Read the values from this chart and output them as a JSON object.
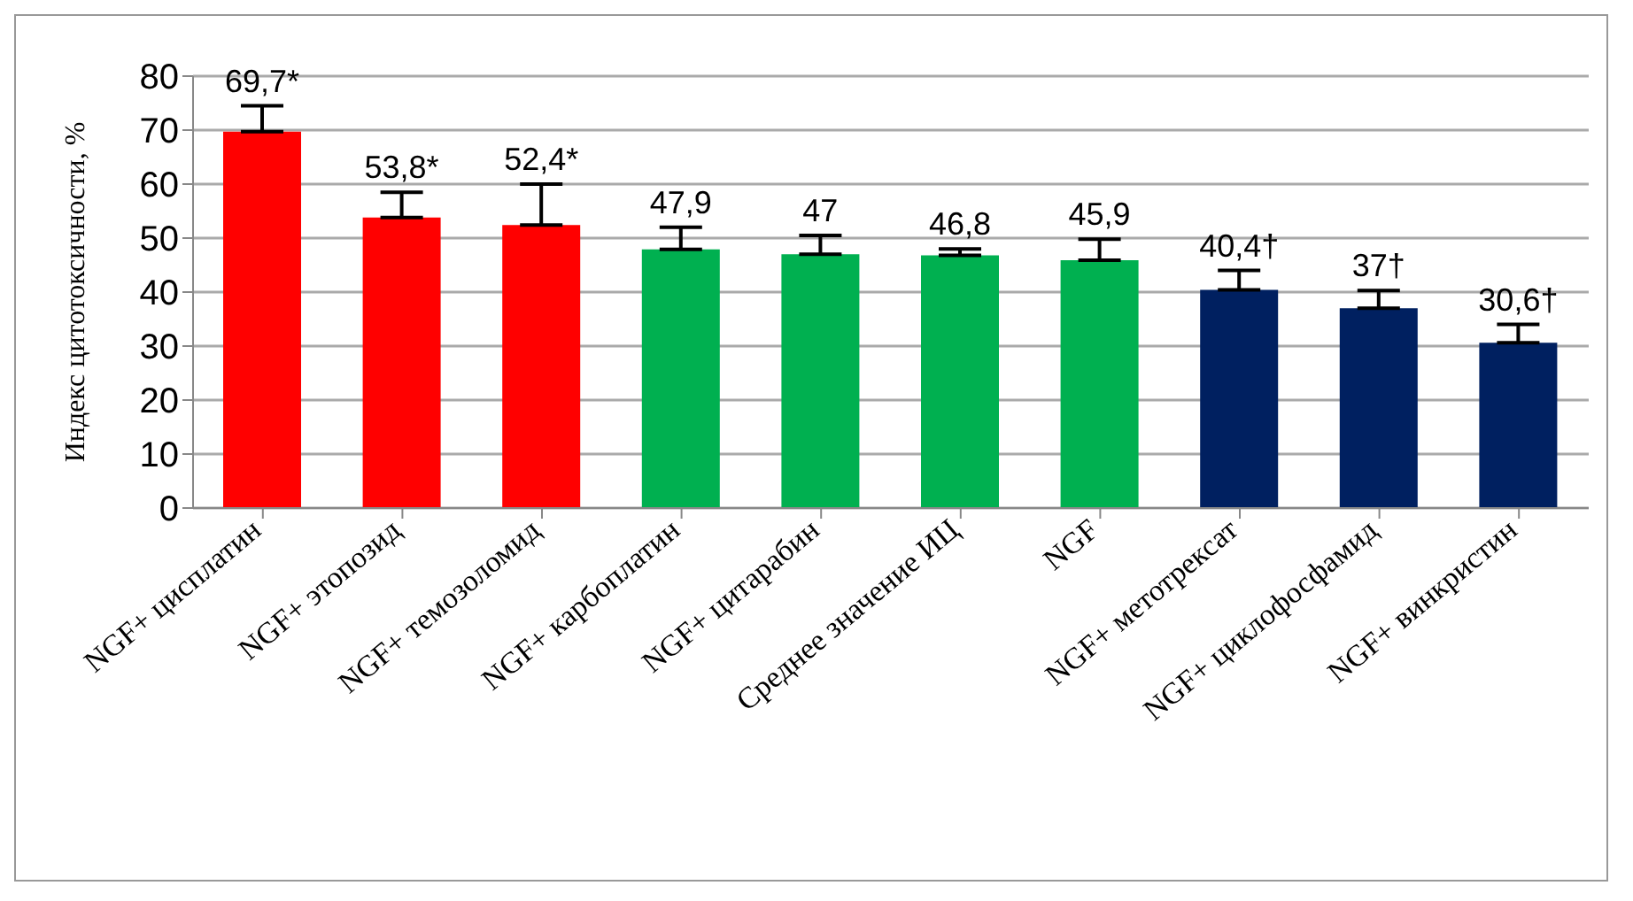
{
  "chart_data": {
    "type": "bar",
    "ylabel": "Индекс цитотоксичности, %",
    "categories": [
      "NGF+ цисплатин",
      "NGF+ этопозид",
      "NGF+ темозоломид",
      "NGF+ карбоплатин",
      "NGF+ цитарабин",
      "Среднее значение ИЦ",
      "NGF",
      "NGF+ метотрексат",
      "NGF+ циклофосфамид",
      "NGF+ винкристин"
    ],
    "values": [
      69.7,
      53.8,
      52.4,
      47.9,
      47,
      46.8,
      45.9,
      40.4,
      37,
      30.6
    ],
    "colors": [
      "#ff0000",
      "#ff0000",
      "#ff0000",
      "#00b050",
      "#00b050",
      "#00b050",
      "#00b050",
      "#002060",
      "#002060",
      "#002060"
    ],
    "errors": [
      [
        69.7,
        74.5
      ],
      [
        53.8,
        58.5
      ],
      [
        52.4,
        60
      ],
      [
        47.9,
        52
      ],
      [
        47,
        50.5
      ],
      [
        46.8,
        48
      ],
      [
        45.9,
        49.8
      ],
      [
        40.4,
        44
      ],
      [
        37,
        40.3
      ],
      [
        30.6,
        34
      ]
    ],
    "value_labels": [
      "69,7*",
      "53,8*",
      "52,4*",
      "47,9",
      "47",
      "46,8",
      "45,9",
      "40,4†",
      "37†",
      "30,6†"
    ],
    "ylim": [
      0,
      80
    ],
    "yticks": [
      0,
      10,
      20,
      30,
      40,
      50,
      60,
      70,
      80
    ],
    "grid": "y",
    "legend": false
  }
}
